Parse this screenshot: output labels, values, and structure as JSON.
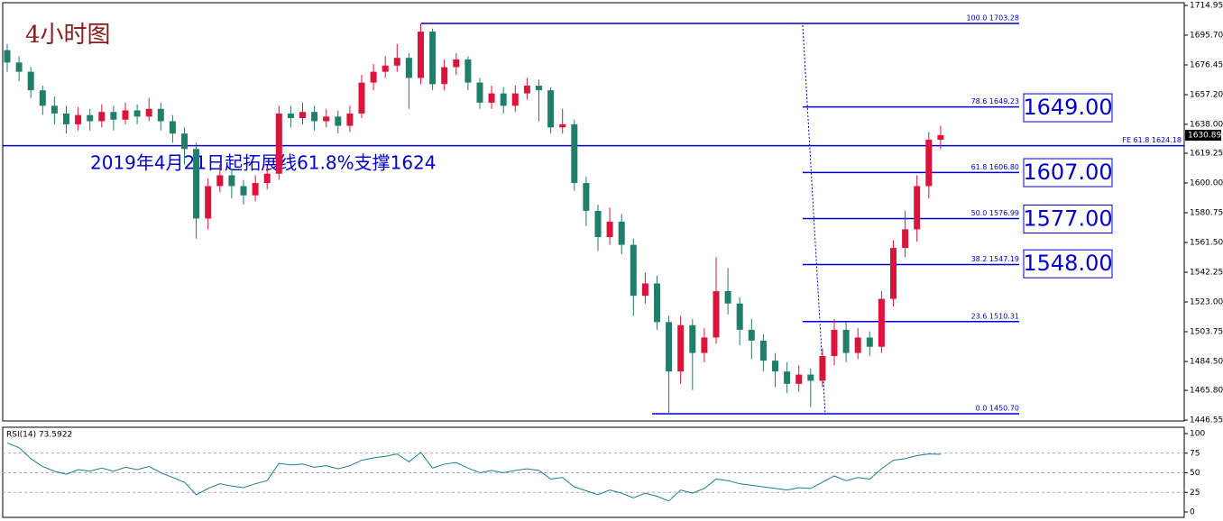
{
  "chart_data": {
    "type": "candlestick",
    "title": "4小时图",
    "annotation": "2019年4月21日起拓展线61.8%支撑1624",
    "up_color": "#dc143c",
    "down_color": "#1f7f6a",
    "open": [
      1686,
      1678,
      1672,
      1660,
      1650,
      1645,
      1638,
      1644,
      1640,
      1646,
      1641,
      1647,
      1643,
      1648,
      1640,
      1632,
      1622,
      1577,
      1598,
      1605,
      1598,
      1592,
      1600,
      1606,
      1645,
      1642,
      1646,
      1640,
      1643,
      1637,
      1645,
      1665,
      1672,
      1676,
      1681,
      1668,
      1698,
      1664,
      1675,
      1680,
      1665,
      1652,
      1658,
      1650,
      1658,
      1663,
      1660,
      1636,
      1638,
      1600,
      1582,
      1565,
      1575,
      1560,
      1527,
      1535,
      1510,
      1478,
      1508,
      1490,
      1500,
      1530,
      1522,
      1505,
      1498,
      1485,
      1478,
      1470,
      1476,
      1472,
      1488,
      1505,
      1490,
      1500,
      1494,
      1525,
      1558,
      1570,
      1598,
      1628
    ],
    "high": [
      1690,
      1682,
      1675,
      1663,
      1656,
      1650,
      1649,
      1648,
      1651,
      1650,
      1652,
      1651,
      1655,
      1652,
      1644,
      1636,
      1626,
      1603,
      1612,
      1609,
      1602,
      1605,
      1611,
      1650,
      1650,
      1652,
      1650,
      1648,
      1647,
      1650,
      1670,
      1677,
      1682,
      1690,
      1684,
      1703.28,
      1700,
      1680,
      1684,
      1682,
      1668,
      1663,
      1662,
      1663,
      1668,
      1667,
      1662,
      1648,
      1641,
      1604,
      1586,
      1584,
      1580,
      1564,
      1542,
      1540,
      1514,
      1514,
      1512,
      1506,
      1552,
      1545,
      1526,
      1512,
      1502,
      1490,
      1484,
      1482,
      1480,
      1493,
      1512,
      1510,
      1506,
      1504,
      1530,
      1563,
      1582,
      1605,
      1633,
      1637
    ],
    "low": [
      1672,
      1666,
      1655,
      1644,
      1638,
      1632,
      1634,
      1634,
      1636,
      1634,
      1638,
      1638,
      1640,
      1634,
      1626,
      1612,
      1564,
      1570,
      1594,
      1590,
      1586,
      1588,
      1596,
      1602,
      1636,
      1638,
      1634,
      1636,
      1632,
      1633,
      1642,
      1660,
      1668,
      1672,
      1648,
      1664,
      1660,
      1660,
      1670,
      1660,
      1648,
      1648,
      1645,
      1646,
      1654,
      1640,
      1632,
      1632,
      1595,
      1572,
      1556,
      1560,
      1554,
      1514,
      1522,
      1505,
      1450.7,
      1470,
      1466,
      1484,
      1496,
      1515,
      1495,
      1486,
      1478,
      1468,
      1464,
      1465,
      1455,
      1468,
      1482,
      1484,
      1486,
      1488,
      1490,
      1520,
      1552,
      1562,
      1590,
      1622
    ],
    "close": [
      1678,
      1672,
      1660,
      1650,
      1645,
      1638,
      1644,
      1640,
      1646,
      1641,
      1647,
      1643,
      1648,
      1640,
      1632,
      1622,
      1577,
      1598,
      1605,
      1598,
      1592,
      1600,
      1606,
      1645,
      1642,
      1646,
      1640,
      1643,
      1637,
      1645,
      1665,
      1672,
      1676,
      1681,
      1668,
      1698,
      1664,
      1675,
      1680,
      1665,
      1652,
      1658,
      1650,
      1658,
      1663,
      1660,
      1636,
      1638,
      1600,
      1582,
      1565,
      1575,
      1560,
      1527,
      1535,
      1510,
      1478,
      1508,
      1490,
      1500,
      1530,
      1522,
      1505,
      1498,
      1485,
      1478,
      1470,
      1476,
      1472,
      1488,
      1505,
      1490,
      1500,
      1494,
      1525,
      1558,
      1570,
      1598,
      1628,
      1631
    ],
    "ylim": [
      1446,
      1716.7
    ],
    "yticks": [
      {
        "value": 1714.95,
        "label": "1714.95"
      },
      {
        "value": 1695.7,
        "label": "1695.70"
      },
      {
        "value": 1676.45,
        "label": "1676.45"
      },
      {
        "value": 1657.2,
        "label": "1657.20"
      },
      {
        "value": 1638,
        "label": "1638.00"
      },
      {
        "value": 1619.25,
        "label": "1619.25"
      },
      {
        "value": 1600,
        "label": "1600.00"
      },
      {
        "value": 1580.75,
        "label": "1580.75"
      },
      {
        "value": 1561.5,
        "label": "1561.50"
      },
      {
        "value": 1542.25,
        "label": "1542.25"
      },
      {
        "value": 1523,
        "label": "1523.00"
      },
      {
        "value": 1503.75,
        "label": "1503.75"
      },
      {
        "value": 1484.5,
        "label": "1484.50"
      },
      {
        "value": 1465.8,
        "label": "1465.80"
      },
      {
        "value": 1446.55,
        "label": "1446.55"
      }
    ],
    "fib_levels": [
      {
        "value": 1703.28,
        "label": "100.0  1703.28"
      },
      {
        "value": 1649.23,
        "label": "78.6  1649.23"
      },
      {
        "value": 1606.8,
        "label": "61.8  1606.80"
      },
      {
        "value": 1576.99,
        "label": "50.0  1576.99"
      },
      {
        "value": 1547.19,
        "label": "38.2  1547.19"
      },
      {
        "value": 1510.31,
        "label": "23.6  1510.31"
      },
      {
        "value": 1450.7,
        "label": "0.0  1450.70"
      }
    ],
    "fe_line": {
      "value": 1624.18,
      "label": "FE 61.8  1624.18"
    },
    "current_price": {
      "value": 1630.89,
      "label": "1630.89"
    },
    "targets": [
      {
        "value": 1649,
        "label": "1649.00"
      },
      {
        "value": 1607,
        "label": "1607.00"
      },
      {
        "value": 1577,
        "label": "1577.00"
      },
      {
        "value": 1548,
        "label": "1548.00"
      }
    ],
    "rsi": {
      "label": "RSI(14) 73.5922",
      "color": "#1f7f8a",
      "ylim": [
        0,
        100
      ],
      "yticks": [
        100,
        75,
        50,
        25,
        0
      ],
      "levels": [
        75,
        50,
        25
      ],
      "values": [
        88,
        82,
        68,
        58,
        52,
        48,
        54,
        52,
        56,
        52,
        57,
        54,
        58,
        50,
        44,
        38,
        22,
        30,
        36,
        33,
        31,
        36,
        40,
        62,
        60,
        61,
        57,
        59,
        55,
        59,
        66,
        69,
        71,
        74,
        64,
        76,
        56,
        61,
        63,
        56,
        50,
        53,
        50,
        53,
        55,
        53,
        42,
        44,
        32,
        27,
        22,
        28,
        24,
        18,
        24,
        20,
        14,
        28,
        24,
        30,
        42,
        40,
        36,
        34,
        32,
        30,
        28,
        31,
        30,
        38,
        46,
        40,
        44,
        42,
        55,
        66,
        68,
        72,
        74,
        73.5922
      ]
    }
  }
}
